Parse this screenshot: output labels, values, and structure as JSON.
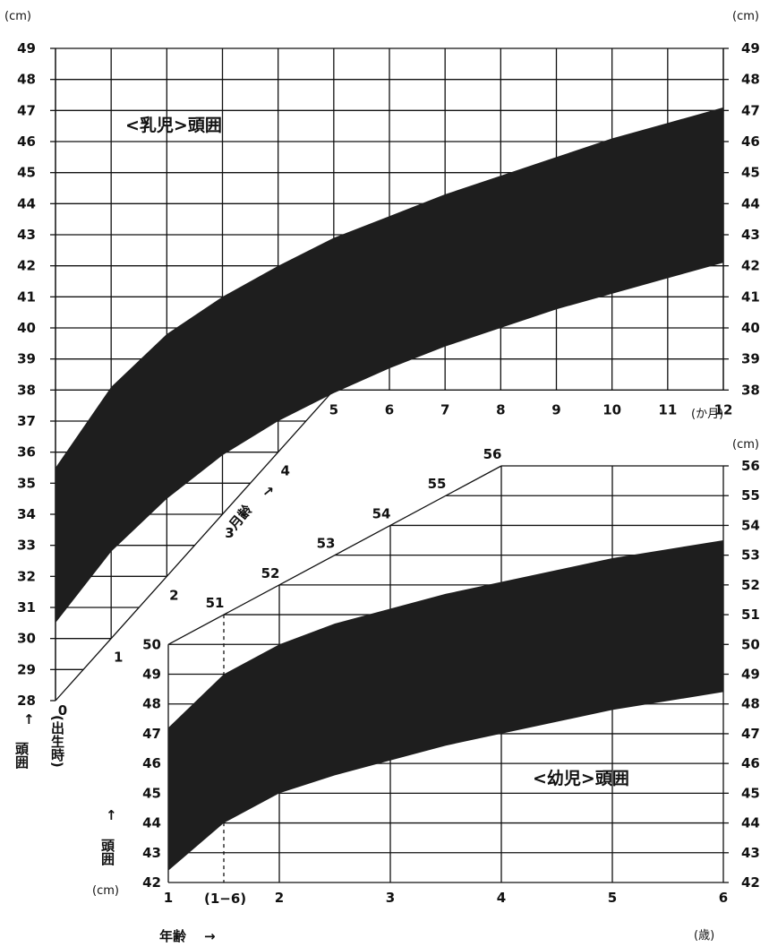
{
  "units": {
    "cm": "(cm)",
    "kagetsu": "(か月)",
    "sai": "(歳)",
    "cm_small": "(cm)"
  },
  "labels": {
    "infant_title": "<乳児>頭囲",
    "toddler_title": "<幼児>頭囲",
    "head_circ": "頭囲",
    "at_birth": "(出生時)",
    "month_age": "月齢",
    "year_age": "年齢",
    "arrow_up": "↑",
    "arrow_right": "→",
    "one_six": "(1−6)"
  },
  "chart_data": [
    {
      "type": "area",
      "title": "<乳児>頭囲",
      "x_unit": "か月",
      "y_unit": "cm",
      "x": [
        0,
        1,
        2,
        3,
        4,
        5,
        6,
        7,
        8,
        9,
        10,
        11,
        12
      ],
      "xlim": [
        0,
        12
      ],
      "ylim": [
        28,
        49
      ],
      "y_ticks": [
        28,
        29,
        30,
        31,
        32,
        33,
        34,
        35,
        36,
        37,
        38,
        39,
        40,
        41,
        42,
        43,
        44,
        45,
        46,
        47,
        48,
        49
      ],
      "series": [
        {
          "values": [
            35.5,
            38.1,
            39.8,
            41.0,
            42.0,
            42.9,
            43.6,
            44.3,
            44.9,
            45.5,
            46.1,
            46.6,
            47.1
          ]
        },
        {
          "values": [
            30.5,
            32.8,
            34.5,
            35.9,
            37.0,
            37.9,
            38.7,
            39.4,
            40.0,
            40.6,
            41.1,
            41.6,
            42.1
          ]
        }
      ],
      "diagonal_month_labels": [
        "0",
        "1",
        "2",
        "3",
        "4",
        "5"
      ],
      "bottom_month_labels": [
        "5",
        "6",
        "7",
        "8",
        "9",
        "10",
        "11",
        "12"
      ]
    },
    {
      "type": "area",
      "title": "<幼児>頭囲",
      "x_unit": "歳",
      "y_unit": "cm",
      "x": [
        1,
        1.5,
        2,
        2.5,
        3,
        3.5,
        4,
        4.5,
        5,
        5.5,
        6
      ],
      "xlim": [
        1,
        6
      ],
      "ylim": [
        42,
        56
      ],
      "y_ticks": [
        42,
        43,
        44,
        45,
        46,
        47,
        48,
        49,
        50,
        51,
        52,
        53,
        54,
        55,
        56
      ],
      "series": [
        {
          "values": [
            47.2,
            49.0,
            50.0,
            50.7,
            51.2,
            51.7,
            52.1,
            52.5,
            52.9,
            53.2,
            53.5
          ]
        },
        {
          "values": [
            42.4,
            44.0,
            45.0,
            45.6,
            46.1,
            46.6,
            47.0,
            47.4,
            47.8,
            48.1,
            48.4
          ]
        }
      ],
      "x_tick_labels": [
        "1",
        "2",
        "3",
        "4",
        "5",
        "6"
      ],
      "diagonal_cm_labels": [
        "50",
        "51",
        "52",
        "53",
        "54",
        "55",
        "56"
      ]
    }
  ]
}
